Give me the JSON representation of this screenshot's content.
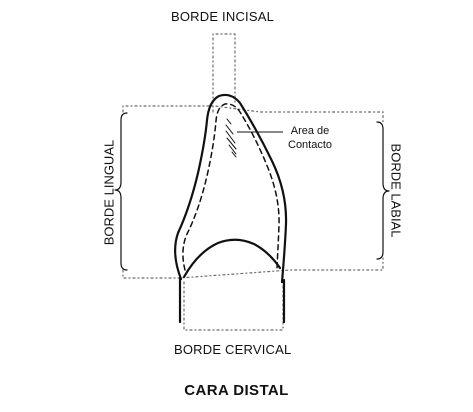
{
  "labels": {
    "incisal": "BORDE INCISAL",
    "cervical": "BORDE CERVICAL",
    "lingual": "BORDE LINGUAL",
    "labial": "BORDE LABIAL",
    "contact_area": "Area de\nContacto"
  },
  "caption": "CARA DISTAL",
  "colors": {
    "ink": "#111111",
    "guide": "#6c6c6c"
  }
}
